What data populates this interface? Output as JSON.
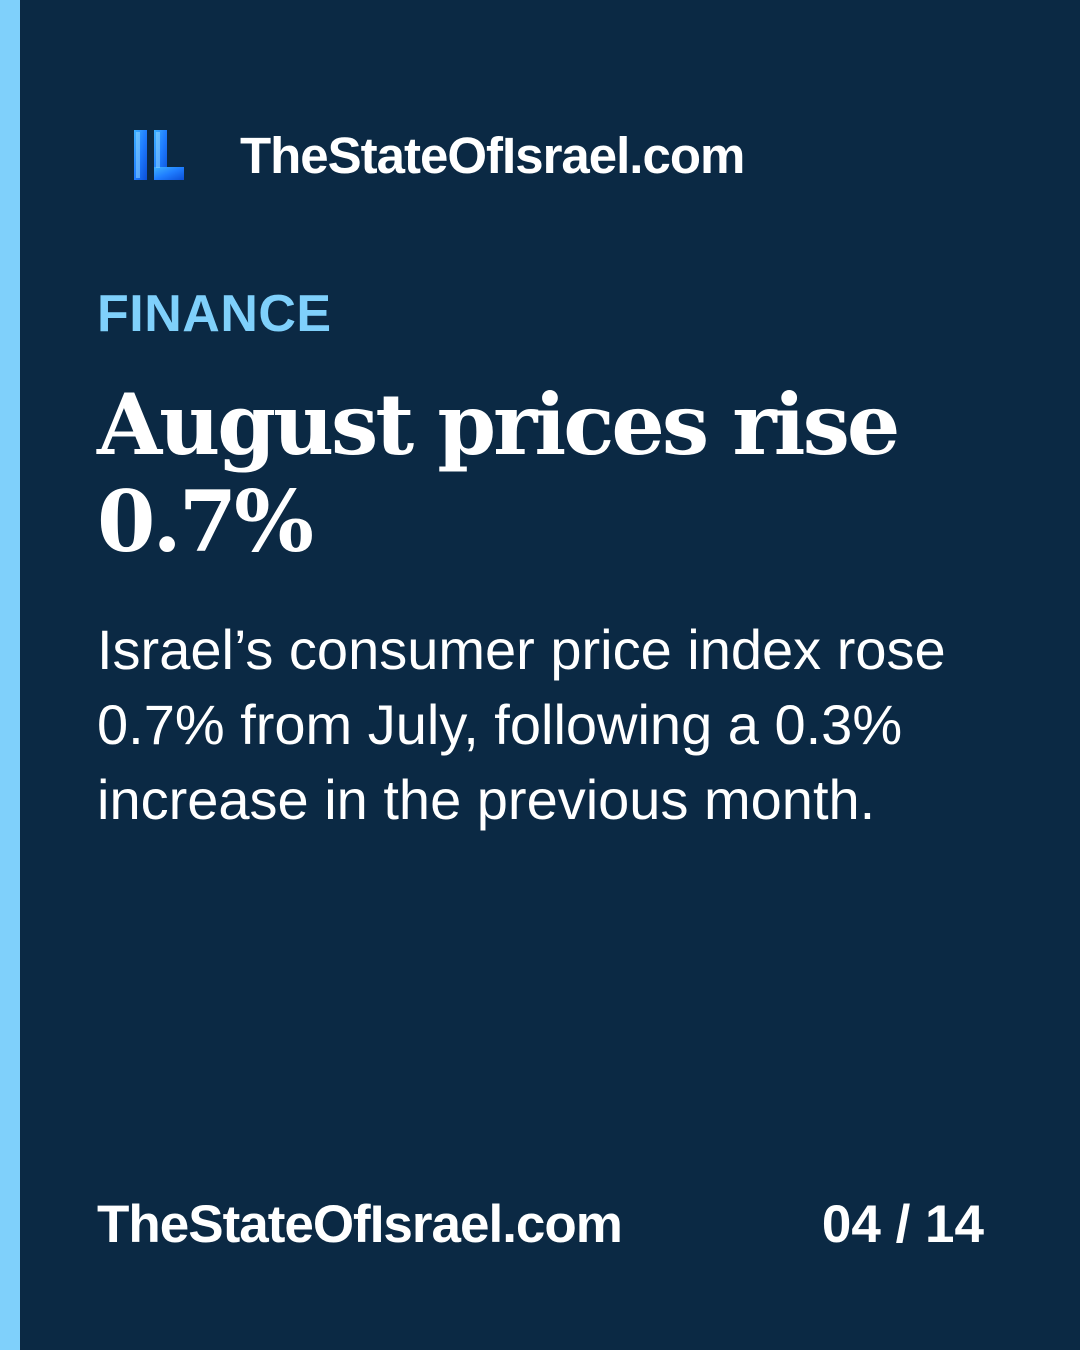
{
  "brand": {
    "logo_icon": "il-logo-icon",
    "logo_text": "IL",
    "site_name": "TheStateOfIsrael.com"
  },
  "article": {
    "category": "FINANCE",
    "headline": "August prices rise 0.7%",
    "body": "Israel’s consumer price index rose 0.7% from July, following a 0.3% increase in the previous month."
  },
  "footer": {
    "site_name": "TheStateOfIsrael.com",
    "page_counter": "04 / 14"
  },
  "colors": {
    "background": "#0b2944",
    "accent": "#7fd0fb",
    "text": "#ffffff",
    "logo_gradient_start": "#1f8bff",
    "logo_gradient_end": "#0a4fd6"
  }
}
